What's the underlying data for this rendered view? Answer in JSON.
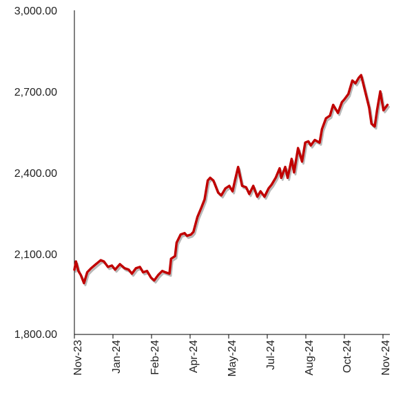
{
  "chart_data": {
    "type": "line",
    "title": "",
    "xlabel": "",
    "ylabel": "",
    "ylim": [
      1800,
      3000
    ],
    "y_ticks": [
      "3,000.00",
      "2,700.00",
      "2,400.00",
      "2,100.00",
      "1,800.00"
    ],
    "y_tick_values": [
      3000,
      2700,
      2400,
      2100,
      1800
    ],
    "x_ticks": [
      "Nov-23",
      "Jan-24",
      "Feb-24",
      "Apr-24",
      "May-24",
      "Jul-24",
      "Aug-24",
      "Oct-24",
      "Nov-24"
    ],
    "x_range": [
      "2023-11-01",
      "2024-11-30"
    ],
    "grid": false,
    "legend": "none",
    "colors": {
      "line": "#c00000",
      "shadow": "#9a9a9a",
      "axis": "#000000",
      "text": "#222222"
    },
    "series": [
      {
        "x": [
          "2023-11-01",
          "2023-11-03",
          "2023-11-06",
          "2023-11-09",
          "2023-11-13",
          "2023-11-17",
          "2023-11-22",
          "2023-11-28",
          "2023-12-04",
          "2023-12-08",
          "2023-12-13",
          "2023-12-18",
          "2023-12-22",
          "2023-12-28",
          "2024-01-03",
          "2024-01-08",
          "2024-01-12",
          "2024-01-17",
          "2024-01-22",
          "2024-01-26",
          "2024-01-31",
          "2024-02-05",
          "2024-02-09",
          "2024-02-14",
          "2024-02-19",
          "2024-02-23",
          "2024-02-28",
          "2024-03-01",
          "2024-03-06",
          "2024-03-08",
          "2024-03-13",
          "2024-03-18",
          "2024-03-21",
          "2024-03-26",
          "2024-03-29",
          "2024-04-03",
          "2024-04-08",
          "2024-04-12",
          "2024-04-16",
          "2024-04-19",
          "2024-04-23",
          "2024-04-29",
          "2024-05-03",
          "2024-05-08",
          "2024-05-13",
          "2024-05-17",
          "2024-05-20",
          "2024-05-24",
          "2024-05-29",
          "2024-06-03",
          "2024-06-07",
          "2024-06-12",
          "2024-06-17",
          "2024-06-21",
          "2024-06-26",
          "2024-07-01",
          "2024-07-05",
          "2024-07-10",
          "2024-07-15",
          "2024-07-17",
          "2024-07-22",
          "2024-07-25",
          "2024-07-30",
          "2024-08-02",
          "2024-08-07",
          "2024-08-12",
          "2024-08-16",
          "2024-08-20",
          "2024-08-23",
          "2024-08-28",
          "2024-09-03",
          "2024-09-06",
          "2024-09-11",
          "2024-09-16",
          "2024-09-20",
          "2024-09-26",
          "2024-10-01",
          "2024-10-04",
          "2024-10-09",
          "2024-10-14",
          "2024-10-18",
          "2024-10-22",
          "2024-10-25",
          "2024-10-30",
          "2024-11-04",
          "2024-11-07",
          "2024-11-11",
          "2024-11-14",
          "2024-11-18",
          "2024-11-22",
          "2024-11-27"
        ],
        "y": [
          2040,
          2070,
          2035,
          2020,
          1990,
          2030,
          2045,
          2060,
          2075,
          2070,
          2050,
          2055,
          2040,
          2060,
          2045,
          2040,
          2025,
          2045,
          2050,
          2030,
          2035,
          2010,
          2000,
          2020,
          2035,
          2030,
          2025,
          2080,
          2090,
          2140,
          2170,
          2175,
          2165,
          2170,
          2180,
          2235,
          2270,
          2300,
          2370,
          2380,
          2370,
          2325,
          2315,
          2340,
          2350,
          2330,
          2370,
          2420,
          2350,
          2345,
          2320,
          2350,
          2310,
          2330,
          2310,
          2340,
          2355,
          2380,
          2415,
          2380,
          2420,
          2380,
          2450,
          2400,
          2490,
          2440,
          2510,
          2515,
          2500,
          2520,
          2510,
          2560,
          2600,
          2610,
          2650,
          2620,
          2660,
          2670,
          2690,
          2740,
          2730,
          2750,
          2760,
          2700,
          2640,
          2580,
          2570,
          2630,
          2700,
          2630,
          2650
        ]
      }
    ]
  }
}
